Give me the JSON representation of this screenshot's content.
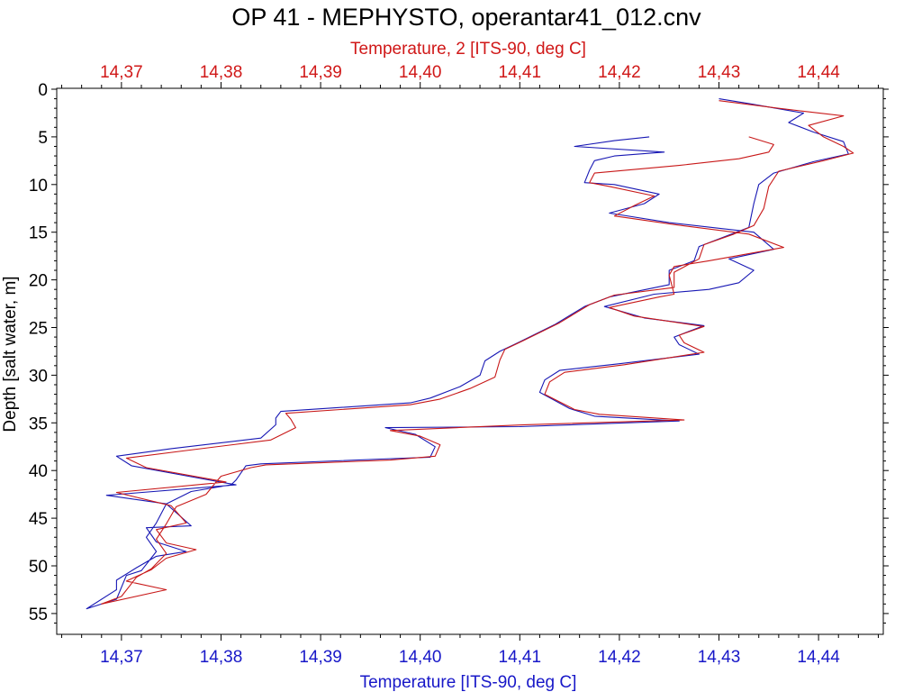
{
  "chart_data": {
    "type": "line",
    "title": "OP 41 - MEPHYSTO, operantar41_012.cnv",
    "ylabel": "Depth [salt water, m]",
    "ylim": [
      0,
      57
    ],
    "y_inverted": true,
    "y_ticks": [
      0,
      5,
      10,
      15,
      20,
      25,
      30,
      35,
      40,
      45,
      50,
      55
    ],
    "y_tick_labels": [
      "0",
      "5",
      "10",
      "15",
      "20",
      "25",
      "30",
      "35",
      "40",
      "45",
      "50",
      "55"
    ],
    "x_bottom": {
      "label": "Temperature [ITS-90, deg C]",
      "range": [
        14.3635,
        14.4465
      ],
      "ticks": [
        14.37,
        14.38,
        14.39,
        14.4,
        14.41,
        14.42,
        14.43,
        14.44
      ],
      "tick_labels": [
        "14,37",
        "14,38",
        "14,39",
        "14,40",
        "14,41",
        "14,42",
        "14,43",
        "14,44"
      ],
      "color": "#1818c8"
    },
    "x_top": {
      "label": "Temperature, 2 [ITS-90, deg C]",
      "range": [
        14.3635,
        14.4465
      ],
      "ticks": [
        14.37,
        14.38,
        14.39,
        14.4,
        14.41,
        14.42,
        14.43,
        14.44
      ],
      "tick_labels": [
        "14,37",
        "14,38",
        "14,39",
        "14,40",
        "14,41",
        "14,42",
        "14,43",
        "14,44"
      ],
      "color": "#d01818"
    },
    "grid": false,
    "series": [
      {
        "axis": "bottom",
        "color": "#1818b4",
        "points": [
          [
            14.43,
            1
          ],
          [
            14.433,
            1.5
          ],
          [
            14.4385,
            2.5
          ],
          [
            14.437,
            3.5
          ],
          [
            14.4395,
            4.5
          ],
          [
            14.4425,
            5.5
          ],
          [
            14.443,
            6.8
          ],
          [
            14.4395,
            7.6
          ],
          [
            14.4355,
            8.8
          ],
          [
            14.434,
            10
          ],
          [
            14.4335,
            12
          ],
          [
            14.433,
            14.5
          ],
          [
            14.4305,
            15.5
          ],
          [
            14.428,
            16.5
          ],
          [
            14.4275,
            18
          ],
          [
            14.425,
            19
          ],
          [
            14.425,
            20.5
          ],
          [
            14.419,
            21.8
          ],
          [
            14.4165,
            22.8
          ],
          [
            14.4135,
            24.7
          ],
          [
            14.41,
            26.5
          ],
          [
            14.408,
            27.5
          ],
          [
            14.4065,
            28.5
          ],
          [
            14.406,
            30
          ],
          [
            14.404,
            31.2
          ],
          [
            14.401,
            32.4
          ],
          [
            14.399,
            32.9
          ],
          [
            14.386,
            33.8
          ],
          [
            14.3855,
            34.5
          ],
          [
            14.3855,
            35.2
          ],
          [
            14.384,
            36.6
          ],
          [
            14.375,
            37.7
          ],
          [
            14.3695,
            38.5
          ],
          [
            14.371,
            39.5
          ],
          [
            14.3815,
            41.5
          ],
          [
            14.3685,
            42.6
          ],
          [
            14.3745,
            43.5
          ],
          [
            14.377,
            45.8
          ],
          [
            14.3725,
            46
          ],
          [
            14.3735,
            47.5
          ],
          [
            14.3765,
            48.5
          ],
          [
            14.3735,
            49
          ],
          [
            14.3715,
            50.2
          ],
          [
            14.3695,
            51.5
          ],
          [
            14.3695,
            52.5
          ],
          [
            14.3665,
            54.5
          ],
          [
            14.3695,
            53.5
          ],
          [
            14.3705,
            51
          ],
          [
            14.372,
            50.5
          ],
          [
            14.3735,
            48.5
          ],
          [
            14.3725,
            47
          ],
          [
            14.3735,
            45.5
          ],
          [
            14.3745,
            43.5
          ],
          [
            14.377,
            42.2
          ],
          [
            14.381,
            41.5
          ],
          [
            14.3815,
            41
          ],
          [
            14.3825,
            39.5
          ],
          [
            14.384,
            39.3
          ],
          [
            14.396,
            38.8
          ],
          [
            14.401,
            38.6
          ],
          [
            14.4015,
            37.5
          ],
          [
            14.3995,
            36.2
          ],
          [
            14.3965,
            35.5
          ],
          [
            14.41,
            35.4
          ],
          [
            14.426,
            34.8
          ],
          [
            14.4175,
            34.3
          ],
          [
            14.415,
            33.5
          ],
          [
            14.412,
            31.8
          ],
          [
            14.4125,
            30.5
          ],
          [
            14.414,
            29.5
          ],
          [
            14.42,
            28.8
          ],
          [
            14.428,
            27.8
          ],
          [
            14.426,
            26.8
          ],
          [
            14.4255,
            26
          ],
          [
            14.4285,
            24.8
          ],
          [
            14.4225,
            24
          ],
          [
            14.4185,
            22.8
          ],
          [
            14.4235,
            21.5
          ],
          [
            14.429,
            21
          ],
          [
            14.432,
            20.3
          ],
          [
            14.4335,
            19
          ],
          [
            14.431,
            17.8
          ],
          [
            14.4355,
            16.8
          ],
          [
            14.4335,
            15
          ],
          [
            14.425,
            14
          ],
          [
            14.419,
            13
          ],
          [
            14.4225,
            12
          ],
          [
            14.424,
            11
          ],
          [
            14.4195,
            10
          ],
          [
            14.4165,
            9.8
          ],
          [
            14.417,
            8.5
          ],
          [
            14.4175,
            7.5
          ],
          [
            14.4195,
            7
          ],
          [
            14.4245,
            6.6
          ],
          [
            14.4155,
            6
          ],
          [
            14.4195,
            5.4
          ],
          [
            14.423,
            5
          ]
        ]
      },
      {
        "axis": "top",
        "color": "#c81818",
        "points": [
          [
            14.43,
            1.2
          ],
          [
            14.436,
            2
          ],
          [
            14.4425,
            2.8
          ],
          [
            14.439,
            3.8
          ],
          [
            14.4405,
            5
          ],
          [
            14.4425,
            6
          ],
          [
            14.4435,
            6.7
          ],
          [
            14.4405,
            7.5
          ],
          [
            14.436,
            8.6
          ],
          [
            14.435,
            10.2
          ],
          [
            14.4345,
            12.5
          ],
          [
            14.4335,
            14.3
          ],
          [
            14.4315,
            15.2
          ],
          [
            14.4285,
            16.3
          ],
          [
            14.428,
            17.8
          ],
          [
            14.4255,
            19.2
          ],
          [
            14.4255,
            20.8
          ],
          [
            14.4195,
            21.6
          ],
          [
            14.417,
            22.6
          ],
          [
            14.414,
            24.5
          ],
          [
            14.4105,
            26.3
          ],
          [
            14.4085,
            27.3
          ],
          [
            14.408,
            28.4
          ],
          [
            14.4075,
            30.2
          ],
          [
            14.405,
            31.4
          ],
          [
            14.402,
            32.5
          ],
          [
            14.399,
            33.1
          ],
          [
            14.3865,
            34
          ],
          [
            14.387,
            34.6
          ],
          [
            14.3875,
            35.5
          ],
          [
            14.385,
            36.8
          ],
          [
            14.3765,
            37.9
          ],
          [
            14.3705,
            38.7
          ],
          [
            14.3725,
            39.7
          ],
          [
            14.3805,
            41.2
          ],
          [
            14.3695,
            42.3
          ],
          [
            14.375,
            43.7
          ],
          [
            14.3765,
            45.5
          ],
          [
            14.3735,
            46.2
          ],
          [
            14.3745,
            47.6
          ],
          [
            14.3775,
            48.3
          ],
          [
            14.3745,
            49.2
          ],
          [
            14.373,
            50.4
          ],
          [
            14.3705,
            51.6
          ],
          [
            14.3745,
            52.5
          ],
          [
            14.368,
            54
          ],
          [
            14.37,
            53.2
          ],
          [
            14.3715,
            51.2
          ],
          [
            14.373,
            50.3
          ],
          [
            14.3745,
            48.7
          ],
          [
            14.3735,
            47.2
          ],
          [
            14.3745,
            45.6
          ],
          [
            14.3755,
            43.8
          ],
          [
            14.3785,
            42.5
          ],
          [
            14.3795,
            41.2
          ],
          [
            14.38,
            40.6
          ],
          [
            14.383,
            39.7
          ],
          [
            14.3845,
            39.4
          ],
          [
            14.397,
            38.9
          ],
          [
            14.4015,
            38.5
          ],
          [
            14.402,
            37.3
          ],
          [
            14.4,
            36.4
          ],
          [
            14.397,
            35.8
          ],
          [
            14.4105,
            35.2
          ],
          [
            14.4265,
            34.7
          ],
          [
            14.418,
            34.1
          ],
          [
            14.4155,
            33.6
          ],
          [
            14.4125,
            32
          ],
          [
            14.413,
            30.7
          ],
          [
            14.4145,
            29.7
          ],
          [
            14.4205,
            28.9
          ],
          [
            14.4285,
            27.6
          ],
          [
            14.4265,
            26.6
          ],
          [
            14.426,
            25.8
          ],
          [
            14.4285,
            24.9
          ],
          [
            14.4215,
            23.8
          ],
          [
            14.419,
            22.9
          ],
          [
            14.424,
            21.8
          ],
          [
            14.4255,
            21.5
          ],
          [
            14.425,
            19.5
          ],
          [
            14.4255,
            18.6
          ],
          [
            14.429,
            18
          ],
          [
            14.4365,
            16.6
          ],
          [
            14.433,
            15.2
          ],
          [
            14.4255,
            14.2
          ],
          [
            14.4195,
            13.3
          ],
          [
            14.4215,
            12.2
          ],
          [
            14.4235,
            11.2
          ],
          [
            14.419,
            10.2
          ],
          [
            14.417,
            9.8
          ],
          [
            14.4175,
            8.8
          ],
          [
            14.426,
            8
          ],
          [
            14.432,
            7.3
          ],
          [
            14.435,
            6.6
          ],
          [
            14.4355,
            5.8
          ],
          [
            14.433,
            5
          ]
        ]
      }
    ]
  }
}
